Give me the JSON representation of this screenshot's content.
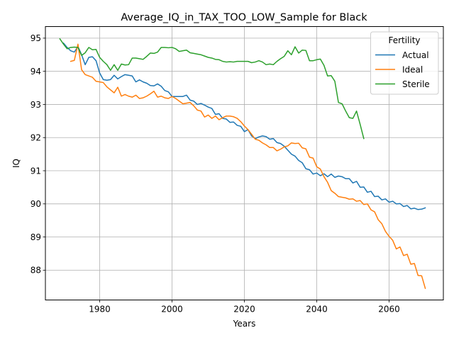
{
  "chart_data": {
    "type": "line",
    "title": "Average_IQ_in_TAX_TOO_LOW_Sample for Black",
    "xlabel": "Years",
    "ylabel": "IQ",
    "xlim": [
      1965,
      2075
    ],
    "ylim": [
      87.1,
      95.35
    ],
    "xticks": [
      1980,
      2000,
      2020,
      2040,
      2060
    ],
    "yticks": [
      88,
      89,
      90,
      91,
      92,
      93,
      94,
      95
    ],
    "grid": true,
    "legend": {
      "title": "Fertility",
      "placement": "top-right"
    },
    "series": [
      {
        "name": "Actual",
        "color": "#1f77b4",
        "points": [
          [
            1970,
            94.85
          ],
          [
            1971,
            94.72
          ],
          [
            1972,
            94.62
          ],
          [
            1973,
            94.58
          ],
          [
            1974,
            94.75
          ],
          [
            1975,
            94.5
          ],
          [
            1976,
            94.2
          ],
          [
            1977,
            94.42
          ],
          [
            1978,
            94.44
          ],
          [
            1979,
            94.32
          ],
          [
            1980,
            93.95
          ],
          [
            1981,
            93.75
          ],
          [
            1982,
            93.73
          ],
          [
            1983,
            93.75
          ],
          [
            1984,
            93.88
          ],
          [
            1985,
            93.77
          ],
          [
            1986,
            93.84
          ],
          [
            1987,
            93.9
          ],
          [
            1988,
            93.88
          ],
          [
            1989,
            93.86
          ],
          [
            1990,
            93.68
          ],
          [
            1991,
            93.74
          ],
          [
            1992,
            93.68
          ],
          [
            1993,
            93.64
          ],
          [
            1994,
            93.57
          ],
          [
            1995,
            93.56
          ],
          [
            1996,
            93.62
          ],
          [
            1997,
            93.55
          ],
          [
            1998,
            93.42
          ],
          [
            1999,
            93.38
          ],
          [
            2000,
            93.24
          ],
          [
            2001,
            93.24
          ],
          [
            2002,
            93.24
          ],
          [
            2003,
            93.24
          ],
          [
            2004,
            93.28
          ],
          [
            2005,
            93.13
          ],
          [
            2006,
            93.1
          ],
          [
            2007,
            93.0
          ],
          [
            2008,
            93.03
          ],
          [
            2009,
            92.98
          ],
          [
            2010,
            92.92
          ],
          [
            2011,
            92.88
          ],
          [
            2012,
            92.7
          ],
          [
            2013,
            92.72
          ],
          [
            2014,
            92.58
          ],
          [
            2015,
            92.56
          ],
          [
            2016,
            92.46
          ],
          [
            2017,
            92.47
          ],
          [
            2018,
            92.37
          ],
          [
            2019,
            92.34
          ],
          [
            2020,
            92.18
          ],
          [
            2021,
            92.24
          ],
          [
            2022,
            92.05
          ],
          [
            2023,
            91.97
          ],
          [
            2024,
            92.02
          ],
          [
            2025,
            92.05
          ],
          [
            2026,
            92.03
          ],
          [
            2027,
            91.95
          ],
          [
            2028,
            91.97
          ],
          [
            2029,
            91.85
          ],
          [
            2030,
            91.82
          ],
          [
            2031,
            91.74
          ],
          [
            2032,
            91.62
          ],
          [
            2033,
            91.5
          ],
          [
            2034,
            91.44
          ],
          [
            2035,
            91.31
          ],
          [
            2036,
            91.24
          ],
          [
            2037,
            91.06
          ],
          [
            2038,
            91.03
          ],
          [
            2039,
            90.9
          ],
          [
            2040,
            90.93
          ],
          [
            2041,
            90.85
          ],
          [
            2042,
            90.91
          ],
          [
            2043,
            90.82
          ],
          [
            2044,
            90.9
          ],
          [
            2045,
            90.8
          ],
          [
            2046,
            90.84
          ],
          [
            2047,
            90.82
          ],
          [
            2048,
            90.76
          ],
          [
            2049,
            90.76
          ],
          [
            2050,
            90.63
          ],
          [
            2051,
            90.68
          ],
          [
            2052,
            90.5
          ],
          [
            2053,
            90.51
          ],
          [
            2054,
            90.35
          ],
          [
            2055,
            90.38
          ],
          [
            2056,
            90.22
          ],
          [
            2057,
            90.23
          ],
          [
            2058,
            90.12
          ],
          [
            2059,
            90.15
          ],
          [
            2060,
            90.05
          ],
          [
            2061,
            90.08
          ],
          [
            2062,
            90.0
          ],
          [
            2063,
            90.01
          ],
          [
            2064,
            89.92
          ],
          [
            2065,
            89.95
          ],
          [
            2066,
            89.85
          ],
          [
            2067,
            89.87
          ],
          [
            2068,
            89.83
          ],
          [
            2069,
            89.84
          ],
          [
            2070,
            89.88
          ]
        ]
      },
      {
        "name": "Ideal",
        "color": "#ff7f0e",
        "points": [
          [
            1972,
            94.3
          ],
          [
            1973,
            94.33
          ],
          [
            1974,
            94.82
          ],
          [
            1975,
            94.05
          ],
          [
            1976,
            93.9
          ],
          [
            1977,
            93.86
          ],
          [
            1978,
            93.82
          ],
          [
            1979,
            93.7
          ],
          [
            1980,
            93.68
          ],
          [
            1981,
            93.66
          ],
          [
            1982,
            93.53
          ],
          [
            1983,
            93.44
          ],
          [
            1984,
            93.35
          ],
          [
            1985,
            93.52
          ],
          [
            1986,
            93.25
          ],
          [
            1987,
            93.3
          ],
          [
            1988,
            93.25
          ],
          [
            1989,
            93.22
          ],
          [
            1990,
            93.28
          ],
          [
            1991,
            93.18
          ],
          [
            1992,
            93.2
          ],
          [
            1993,
            93.25
          ],
          [
            1994,
            93.32
          ],
          [
            1995,
            93.4
          ],
          [
            1996,
            93.22
          ],
          [
            1997,
            93.25
          ],
          [
            1998,
            93.2
          ],
          [
            1999,
            93.18
          ],
          [
            2000,
            93.24
          ],
          [
            2001,
            93.18
          ],
          [
            2002,
            93.1
          ],
          [
            2003,
            93.02
          ],
          [
            2004,
            93.04
          ],
          [
            2005,
            93.06
          ],
          [
            2006,
            92.96
          ],
          [
            2007,
            92.83
          ],
          [
            2008,
            92.8
          ],
          [
            2009,
            92.62
          ],
          [
            2010,
            92.68
          ],
          [
            2011,
            92.58
          ],
          [
            2012,
            92.65
          ],
          [
            2013,
            92.54
          ],
          [
            2014,
            92.6
          ],
          [
            2015,
            92.65
          ],
          [
            2016,
            92.65
          ],
          [
            2017,
            92.63
          ],
          [
            2018,
            92.58
          ],
          [
            2019,
            92.48
          ],
          [
            2020,
            92.35
          ],
          [
            2021,
            92.24
          ],
          [
            2022,
            92.1
          ],
          [
            2023,
            91.95
          ],
          [
            2024,
            91.92
          ],
          [
            2025,
            91.84
          ],
          [
            2026,
            91.78
          ],
          [
            2027,
            91.7
          ],
          [
            2028,
            91.7
          ],
          [
            2029,
            91.6
          ],
          [
            2030,
            91.65
          ],
          [
            2031,
            91.72
          ],
          [
            2032,
            91.75
          ],
          [
            2033,
            91.84
          ],
          [
            2034,
            91.82
          ],
          [
            2035,
            91.83
          ],
          [
            2036,
            91.69
          ],
          [
            2037,
            91.66
          ],
          [
            2038,
            91.41
          ],
          [
            2039,
            91.38
          ],
          [
            2040,
            91.12
          ],
          [
            2041,
            91.05
          ],
          [
            2042,
            90.82
          ],
          [
            2043,
            90.65
          ],
          [
            2044,
            90.4
          ],
          [
            2045,
            90.32
          ],
          [
            2046,
            90.22
          ],
          [
            2047,
            90.2
          ],
          [
            2048,
            90.18
          ],
          [
            2049,
            90.14
          ],
          [
            2050,
            90.15
          ],
          [
            2051,
            90.08
          ],
          [
            2052,
            90.1
          ],
          [
            2053,
            89.98
          ],
          [
            2054,
            90.0
          ],
          [
            2055,
            89.82
          ],
          [
            2056,
            89.76
          ],
          [
            2057,
            89.52
          ],
          [
            2058,
            89.4
          ],
          [
            2059,
            89.17
          ],
          [
            2060,
            89.02
          ],
          [
            2061,
            88.9
          ],
          [
            2062,
            88.64
          ],
          [
            2063,
            88.7
          ],
          [
            2064,
            88.44
          ],
          [
            2065,
            88.48
          ],
          [
            2066,
            88.18
          ],
          [
            2067,
            88.2
          ],
          [
            2068,
            87.84
          ],
          [
            2069,
            87.83
          ],
          [
            2070,
            87.45
          ]
        ]
      },
      {
        "name": "Sterile",
        "color": "#2ca02c",
        "points": [
          [
            1969,
            94.98
          ],
          [
            1970,
            94.82
          ],
          [
            1971,
            94.68
          ],
          [
            1972,
            94.72
          ],
          [
            1973,
            94.73
          ],
          [
            1974,
            94.72
          ],
          [
            1975,
            94.48
          ],
          [
            1976,
            94.56
          ],
          [
            1977,
            94.72
          ],
          [
            1978,
            94.65
          ],
          [
            1979,
            94.66
          ],
          [
            1980,
            94.42
          ],
          [
            1981,
            94.3
          ],
          [
            1982,
            94.2
          ],
          [
            1983,
            94.03
          ],
          [
            1984,
            94.2
          ],
          [
            1985,
            94.03
          ],
          [
            1986,
            94.22
          ],
          [
            1987,
            94.19
          ],
          [
            1988,
            94.2
          ],
          [
            1989,
            94.4
          ],
          [
            1990,
            94.4
          ],
          [
            1991,
            94.38
          ],
          [
            1992,
            94.36
          ],
          [
            1993,
            94.45
          ],
          [
            1994,
            94.55
          ],
          [
            1995,
            94.54
          ],
          [
            1996,
            94.58
          ],
          [
            1997,
            94.72
          ],
          [
            1998,
            94.72
          ],
          [
            1999,
            94.71
          ],
          [
            2000,
            94.72
          ],
          [
            2001,
            94.68
          ],
          [
            2002,
            94.6
          ],
          [
            2003,
            94.62
          ],
          [
            2004,
            94.64
          ],
          [
            2005,
            94.56
          ],
          [
            2006,
            94.54
          ],
          [
            2007,
            94.52
          ],
          [
            2008,
            94.5
          ],
          [
            2009,
            94.46
          ],
          [
            2010,
            94.42
          ],
          [
            2011,
            94.4
          ],
          [
            2012,
            94.36
          ],
          [
            2013,
            94.35
          ],
          [
            2014,
            94.3
          ],
          [
            2015,
            94.28
          ],
          [
            2016,
            94.29
          ],
          [
            2017,
            94.28
          ],
          [
            2018,
            94.3
          ],
          [
            2019,
            94.3
          ],
          [
            2020,
            94.3
          ],
          [
            2021,
            94.3
          ],
          [
            2022,
            94.26
          ],
          [
            2023,
            94.28
          ],
          [
            2024,
            94.32
          ],
          [
            2025,
            94.28
          ],
          [
            2026,
            94.2
          ],
          [
            2027,
            94.22
          ],
          [
            2028,
            94.2
          ],
          [
            2029,
            94.3
          ],
          [
            2030,
            94.38
          ],
          [
            2031,
            94.45
          ],
          [
            2032,
            94.62
          ],
          [
            2033,
            94.5
          ],
          [
            2034,
            94.74
          ],
          [
            2035,
            94.55
          ],
          [
            2036,
            94.64
          ],
          [
            2037,
            94.63
          ],
          [
            2038,
            94.32
          ],
          [
            2039,
            94.32
          ],
          [
            2040,
            94.35
          ],
          [
            2041,
            94.37
          ],
          [
            2042,
            94.18
          ],
          [
            2043,
            93.86
          ],
          [
            2044,
            93.87
          ],
          [
            2045,
            93.7
          ],
          [
            2046,
            93.06
          ],
          [
            2047,
            93.02
          ],
          [
            2048,
            92.8
          ],
          [
            2049,
            92.6
          ],
          [
            2050,
            92.58
          ],
          [
            2051,
            92.8
          ],
          [
            2052,
            92.4
          ],
          [
            2053,
            91.97
          ]
        ]
      }
    ]
  }
}
